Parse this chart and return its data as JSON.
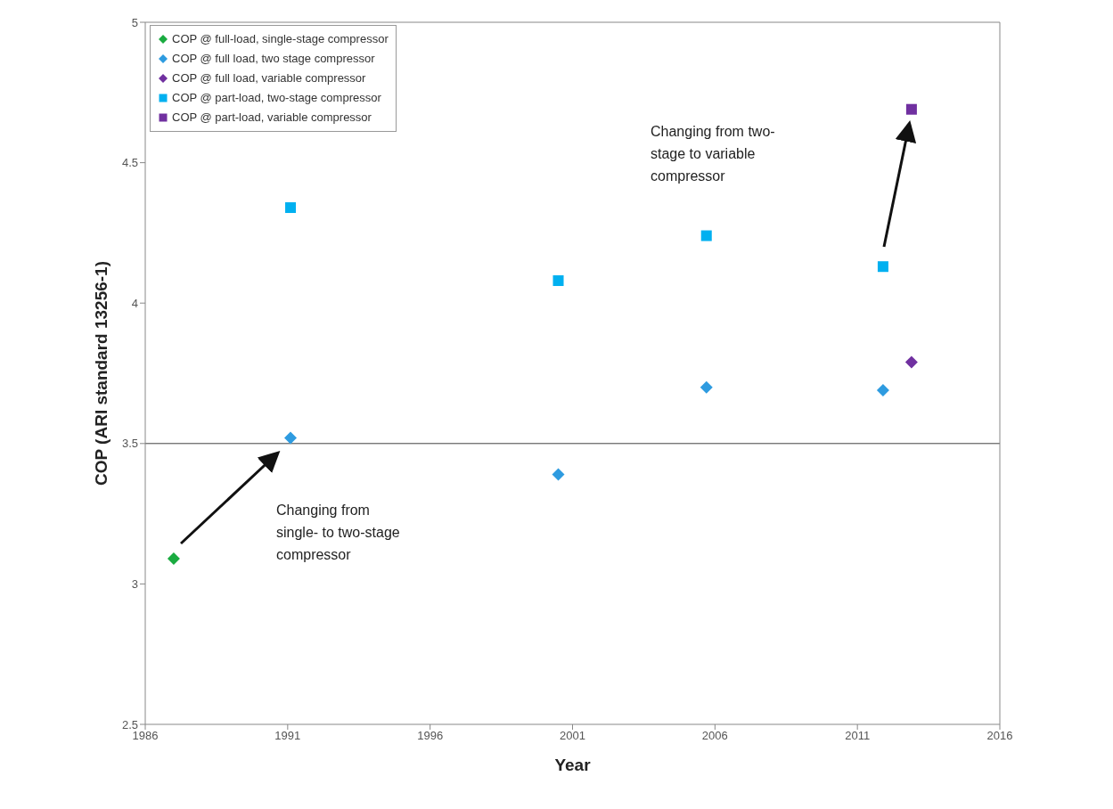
{
  "chart_data": {
    "type": "scatter",
    "xlabel": "Year",
    "ylabel": "COP (ARI standard 13256-1)",
    "xlim": [
      1986,
      2016
    ],
    "xticks": [
      1986,
      1991,
      1996,
      2001,
      2006,
      2011,
      2016
    ],
    "ylim": [
      2.5,
      5
    ],
    "yticks": [
      2.5,
      3,
      3.5,
      4,
      4.5,
      5
    ],
    "grid": false,
    "legend": "top left",
    "series": [
      {
        "name": "COP @ full-load, single-stage compressor",
        "color": "#1aab40",
        "marker": "diamond",
        "x": [
          1987
        ],
        "values": [
          3.09
        ]
      },
      {
        "name": "COP @ full load, two stage compressor",
        "color": "#2e9be0",
        "marker": "diamond",
        "x": [
          1991.1,
          2000.5,
          2005.7,
          2011.9
        ],
        "values": [
          3.52,
          3.39,
          3.7,
          3.69
        ]
      },
      {
        "name": "COP @ full load, variable compressor",
        "color": "#7030a0",
        "marker": "diamond",
        "x": [
          2012.9
        ],
        "values": [
          3.79
        ]
      },
      {
        "name": "COP @ part-load, two-stage compressor",
        "color": "#00b0f0",
        "marker": "square",
        "x": [
          1991.1,
          2000.5,
          2005.7,
          2011.9
        ],
        "values": [
          4.34,
          4.08,
          4.24,
          4.13
        ]
      },
      {
        "name": "COP @ part-load, variable compressor",
        "color": "#7030a0",
        "marker": "square",
        "x": [
          2012.9
        ],
        "values": [
          4.69
        ]
      }
    ],
    "ref_lines": [
      {
        "axis": "y",
        "value": 3.5,
        "color": "#404040"
      }
    ],
    "annotations": [
      "Changing from single- to two-stage compressor",
      "Changing from two-stage to variable compressor"
    ]
  }
}
